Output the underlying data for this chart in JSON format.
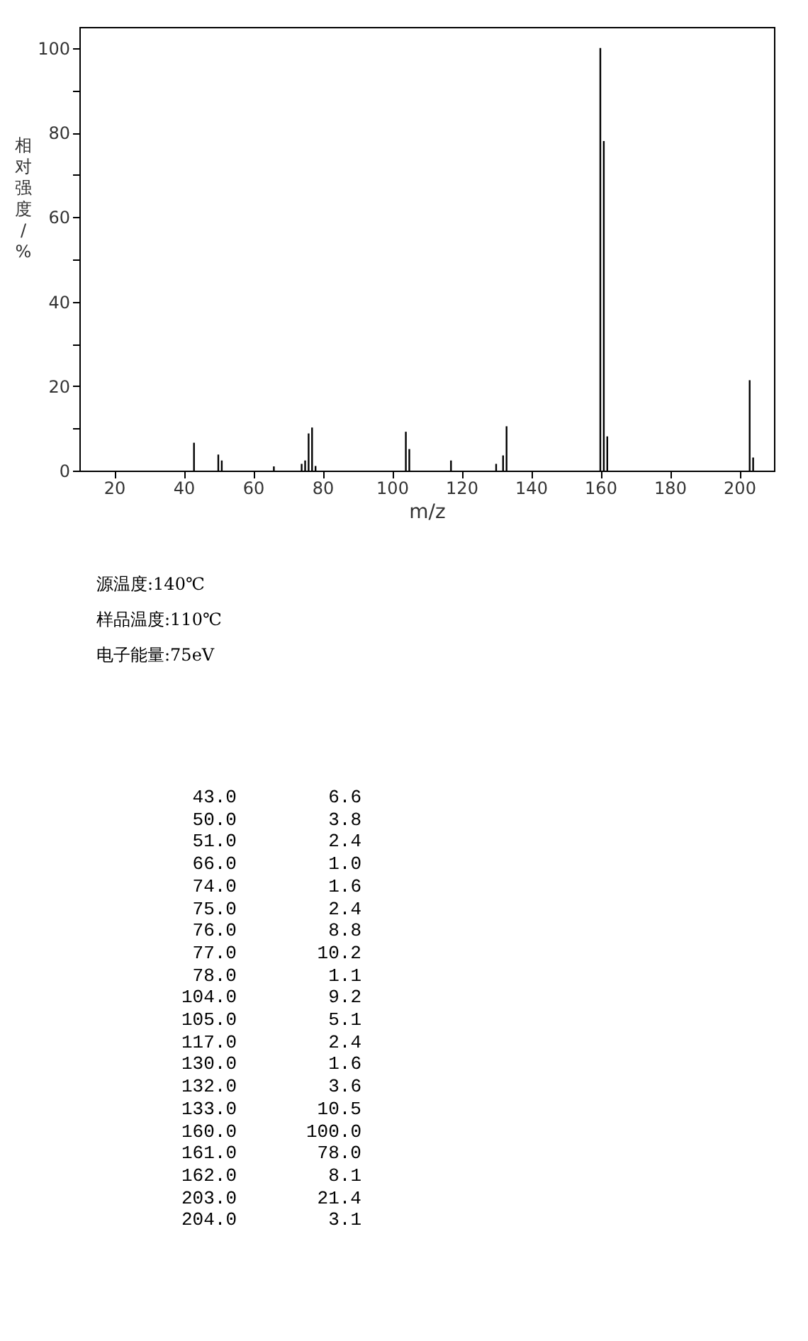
{
  "chart_data": {
    "type": "bar",
    "xlabel": "m/z",
    "ylabel": "相对强度/%",
    "x": [
      43,
      50,
      51,
      66,
      74,
      75,
      76,
      77,
      78,
      104,
      105,
      117,
      130,
      132,
      133,
      160,
      161,
      162,
      203,
      204
    ],
    "values": [
      6.6,
      3.8,
      2.4,
      1.0,
      1.6,
      2.4,
      8.8,
      10.2,
      1.1,
      9.2,
      5.1,
      2.4,
      1.6,
      3.6,
      10.5,
      100.0,
      78.0,
      8.1,
      21.4,
      3.1
    ],
    "color": "#000000",
    "xlim": [
      10,
      210
    ],
    "xticks": [
      20,
      40,
      60,
      80,
      100,
      120,
      140,
      160,
      180,
      200
    ],
    "ylim": [
      0,
      105
    ],
    "yticks": [
      0,
      {
        "value": 10,
        "label": null
      },
      20,
      {
        "value": 30,
        "label": null
      },
      40,
      {
        "value": 50,
        "label": null
      },
      60,
      {
        "value": 70,
        "label": null
      },
      80,
      {
        "value": 90,
        "label": null
      },
      100
    ],
    "grid": false,
    "legend": false,
    "annotations": [
      "源温度:140℃",
      "样品温度:110℃",
      "电子能量:75eV",
      "43.0",
      "6.6",
      "50.0",
      "3.8",
      "51.0",
      "2.4",
      "66.0",
      "1.0",
      "74.0",
      "1.6",
      "75.0",
      "2.4",
      "76.0",
      "8.8",
      "77.0",
      "10.2",
      "78.0",
      "1.1",
      "104.0",
      "9.2",
      "105.0",
      "5.1",
      "117.0",
      "2.4",
      "130.0",
      "1.6",
      "132.0",
      "3.6",
      "133.0",
      "10.5",
      "160.0",
      "100.0",
      "161.0",
      "78.0",
      "162.0",
      "8.1",
      "203.0",
      "21.4",
      "204.0",
      "3.1"
    ]
  }
}
